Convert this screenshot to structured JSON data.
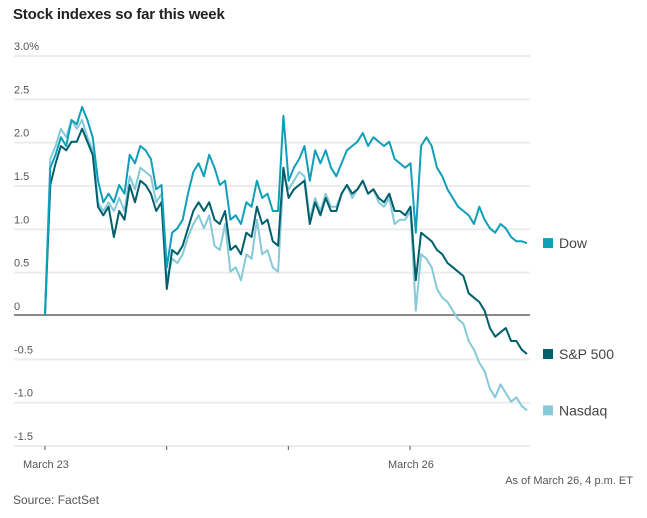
{
  "chart_data": {
    "type": "line",
    "title": "Stock indexes so far this week",
    "xlabel": "",
    "ylabel": "",
    "ylim": [
      -1.5,
      3.0
    ],
    "yticks": [
      {
        "value": 3.0,
        "label": "3.0%"
      },
      {
        "value": 2.5,
        "label": "2.5"
      },
      {
        "value": 2.0,
        "label": "2.0"
      },
      {
        "value": 1.5,
        "label": "1.5"
      },
      {
        "value": 1.0,
        "label": "1.0"
      },
      {
        "value": 0.5,
        "label": "0.5"
      },
      {
        "value": 0,
        "label": "0"
      },
      {
        "value": -0.5,
        "label": "-0.5"
      },
      {
        "value": -1.0,
        "label": "-1.0"
      },
      {
        "value": -1.5,
        "label": "-1.5"
      }
    ],
    "xdays": 4,
    "xticks": [
      {
        "day": 0,
        "label": "March 23"
      },
      {
        "day": 1,
        "label": ""
      },
      {
        "day": 2,
        "label": ""
      },
      {
        "day": 3,
        "label": "March 26"
      }
    ],
    "grid": true,
    "legend_placement": "right-end-of-lines",
    "series": [
      {
        "name": "Dow",
        "color": "#0f9fb8",
        "values": [
          0,
          1.7,
          1.85,
          2.05,
          1.95,
          2.25,
          2.2,
          2.4,
          2.25,
          2.05,
          1.55,
          1.3,
          1.4,
          1.3,
          1.5,
          1.4,
          1.85,
          1.75,
          1.95,
          1.9,
          1.8,
          1.45,
          1.5,
          0.55,
          0.95,
          1.0,
          1.1,
          1.4,
          1.65,
          1.75,
          1.6,
          1.85,
          1.7,
          1.5,
          1.55,
          1.1,
          1.15,
          1.05,
          1.3,
          1.25,
          1.55,
          1.35,
          1.4,
          1.2,
          1.2,
          2.3,
          1.55,
          1.7,
          1.8,
          1.95,
          1.55,
          1.9,
          1.75,
          1.9,
          1.7,
          1.6,
          1.75,
          1.9,
          1.95,
          2.0,
          2.1,
          1.95,
          2.05,
          2.0,
          1.95,
          2.0,
          1.8,
          1.75,
          1.7,
          1.75,
          0.95,
          1.95,
          2.05,
          1.95,
          1.7,
          1.6,
          1.45,
          1.35,
          1.25,
          1.2,
          1.15,
          1.05,
          1.25,
          1.1,
          1.0,
          0.95,
          1.05,
          1.0,
          0.9,
          0.85,
          0.85,
          0.83
        ]
      },
      {
        "name": "S&P 500",
        "color": "#005f6b",
        "values": [
          0,
          1.5,
          1.75,
          1.95,
          1.9,
          2.0,
          2.0,
          2.15,
          2.0,
          1.85,
          1.25,
          1.15,
          1.25,
          0.9,
          1.2,
          1.1,
          1.5,
          1.3,
          1.55,
          1.5,
          1.4,
          1.2,
          1.3,
          0.3,
          0.75,
          0.7,
          0.8,
          1.0,
          1.2,
          1.3,
          1.2,
          1.3,
          1.1,
          1.05,
          1.2,
          0.75,
          0.8,
          0.7,
          0.95,
          0.9,
          1.25,
          1.05,
          1.1,
          0.85,
          0.8,
          1.7,
          1.35,
          1.45,
          1.5,
          1.55,
          1.05,
          1.3,
          1.15,
          1.35,
          1.2,
          1.2,
          1.4,
          1.5,
          1.4,
          1.45,
          1.55,
          1.4,
          1.45,
          1.35,
          1.3,
          1.4,
          1.2,
          1.2,
          1.15,
          1.25,
          0.4,
          0.95,
          0.9,
          0.85,
          0.75,
          0.7,
          0.6,
          0.55,
          0.5,
          0.45,
          0.25,
          0.2,
          0.15,
          0.05,
          -0.15,
          -0.25,
          -0.2,
          -0.15,
          -0.3,
          -0.3,
          -0.4,
          -0.45
        ]
      },
      {
        "name": "Nasdaq",
        "color": "#86c9d8",
        "values": [
          0,
          1.8,
          1.95,
          2.15,
          2.05,
          2.25,
          2.15,
          2.25,
          2.05,
          1.9,
          1.3,
          1.2,
          1.3,
          1.2,
          1.35,
          1.2,
          1.6,
          1.45,
          1.7,
          1.65,
          1.6,
          1.3,
          1.4,
          0.4,
          0.65,
          0.6,
          0.7,
          0.9,
          1.05,
          1.15,
          1.0,
          1.15,
          0.8,
          0.75,
          1.05,
          0.5,
          0.55,
          0.4,
          0.7,
          0.65,
          1.1,
          0.7,
          0.75,
          0.55,
          0.5,
          1.6,
          1.45,
          1.55,
          1.65,
          1.6,
          1.1,
          1.35,
          1.2,
          1.4,
          1.25,
          1.25,
          1.4,
          1.5,
          1.35,
          1.45,
          1.55,
          1.4,
          1.45,
          1.3,
          1.25,
          1.35,
          1.05,
          1.1,
          1.1,
          1.2,
          0.05,
          0.7,
          0.65,
          0.55,
          0.3,
          0.2,
          0.15,
          0.05,
          -0.05,
          -0.1,
          -0.3,
          -0.4,
          -0.55,
          -0.65,
          -0.85,
          -0.95,
          -0.8,
          -0.9,
          -1.0,
          -0.95,
          -1.05,
          -1.1
        ]
      }
    ]
  },
  "footer": {
    "as_of": "As of March 26, 4 p.m. ET",
    "source": "Source: FactSet"
  }
}
